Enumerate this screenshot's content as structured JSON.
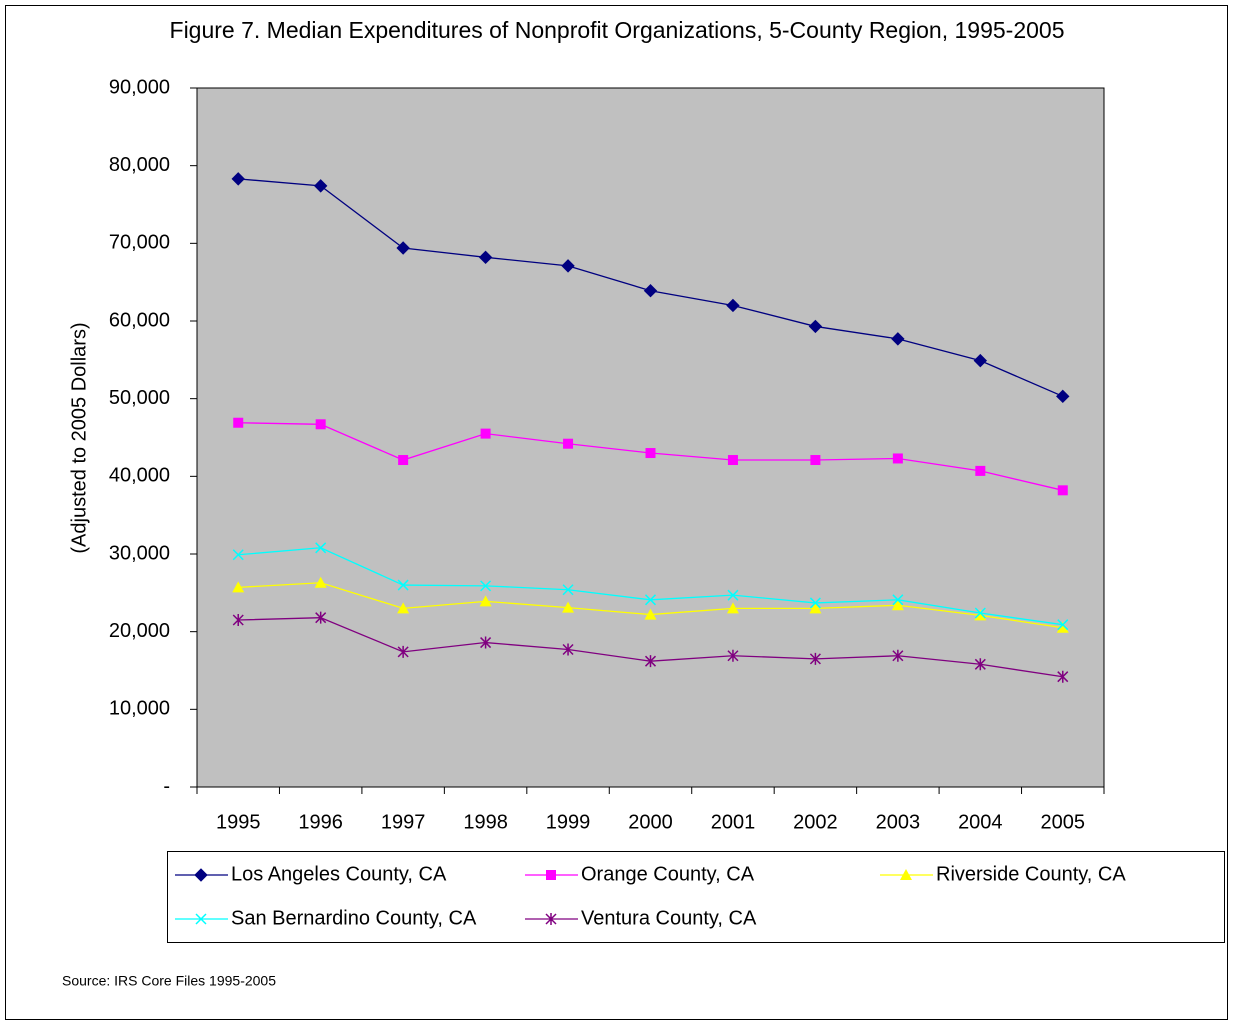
{
  "chart_data": {
    "type": "line",
    "title": "Figure 7. Median Expenditures of Nonprofit Organizations, 5-County Region, 1995-2005",
    "y_label": "(Adjusted to 2005 Dollars)",
    "source": "Source: IRS Core Files 1995-2005",
    "categories": [
      "1995",
      "1996",
      "1997",
      "1998",
      "1999",
      "2000",
      "2001",
      "2002",
      "2003",
      "2004",
      "2005"
    ],
    "ylim": [
      0,
      90000
    ],
    "yticks": [
      {
        "value": 0,
        "label": "-"
      },
      {
        "value": 10000,
        "label": "10,000"
      },
      {
        "value": 20000,
        "label": "20,000"
      },
      {
        "value": 30000,
        "label": "30,000"
      },
      {
        "value": 40000,
        "label": "40,000"
      },
      {
        "value": 50000,
        "label": "50,000"
      },
      {
        "value": 60000,
        "label": "60,000"
      },
      {
        "value": 70000,
        "label": "70,000"
      },
      {
        "value": 80000,
        "label": "80,000"
      },
      {
        "value": 90000,
        "label": "90,000"
      }
    ],
    "grid": false,
    "plot_background": "#c0c0c0",
    "legend": "bottom",
    "series": [
      {
        "name": "Los Angeles County, CA",
        "color": "#000080",
        "marker": "diamond",
        "values": [
          78300,
          77400,
          69400,
          68200,
          67100,
          63900,
          62000,
          59300,
          57700,
          54900,
          50300
        ]
      },
      {
        "name": "Orange County, CA",
        "color": "#ff00ff",
        "marker": "square",
        "values": [
          46900,
          46700,
          42100,
          45500,
          44200,
          43000,
          42100,
          42100,
          42300,
          40700,
          38200
        ]
      },
      {
        "name": "Riverside County, CA",
        "color": "#ffff00",
        "marker": "triangle",
        "values": [
          25700,
          26300,
          23000,
          23900,
          23100,
          22200,
          23000,
          23000,
          23400,
          22100,
          20500
        ]
      },
      {
        "name": "San Bernardino County, CA",
        "color": "#00ffff",
        "marker": "x",
        "values": [
          29900,
          30800,
          26000,
          25900,
          25400,
          24100,
          24700,
          23700,
          24100,
          22400,
          20900
        ]
      },
      {
        "name": "Ventura County, CA",
        "color": "#800080",
        "marker": "asterisk",
        "values": [
          21500,
          21800,
          17400,
          18600,
          17700,
          16200,
          16900,
          16500,
          16900,
          15800,
          14200
        ]
      }
    ]
  }
}
